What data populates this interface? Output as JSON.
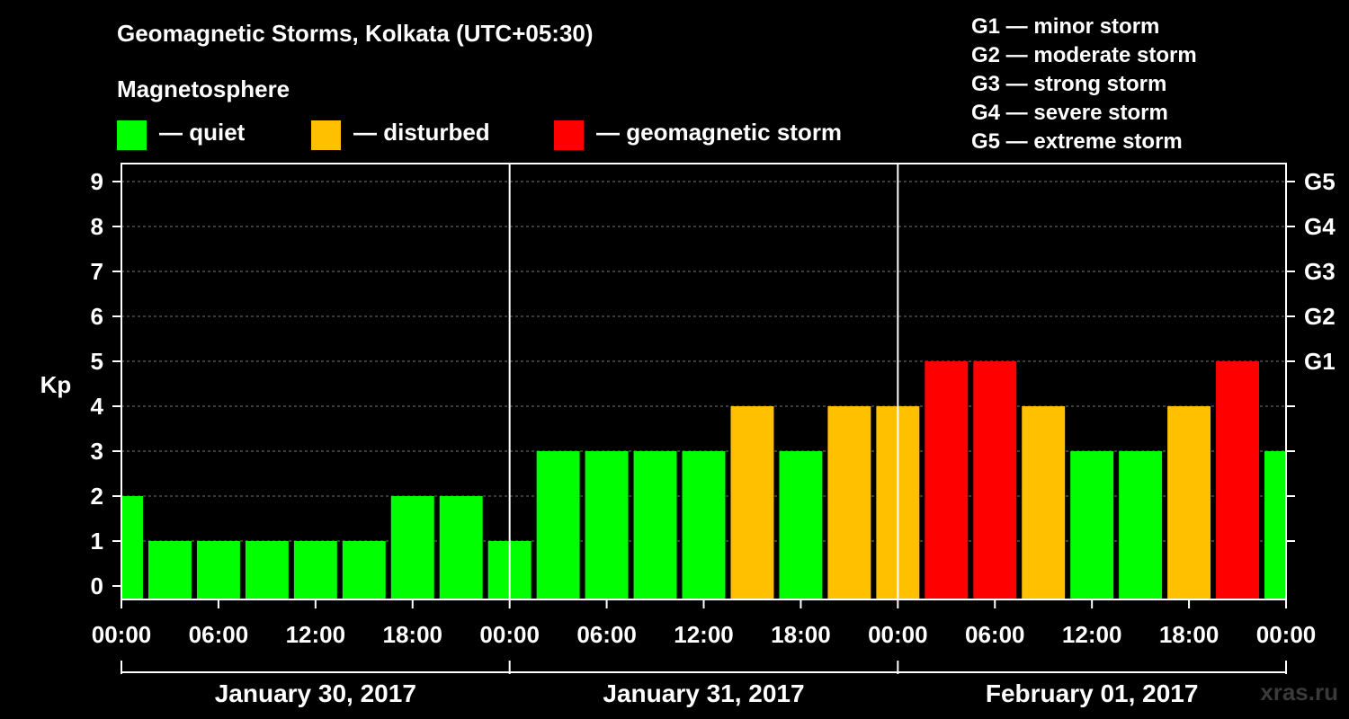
{
  "chart_data": {
    "type": "bar",
    "title": "Geomagnetic Storms, Kolkata (UTC+05:30)",
    "ylabel": "Kp",
    "ylim": [
      0,
      9
    ],
    "yticks": [
      "0",
      "1",
      "2",
      "3",
      "4",
      "5",
      "6",
      "7",
      "8",
      "9"
    ],
    "right_ticks": [
      {
        "kp": 5,
        "label": "G1"
      },
      {
        "kp": 6,
        "label": "G2"
      },
      {
        "kp": 7,
        "label": "G3"
      },
      {
        "kp": 8,
        "label": "G4"
      },
      {
        "kp": 9,
        "label": "G5"
      }
    ],
    "xticks": [
      "00:00",
      "06:00",
      "12:00",
      "18:00",
      "00:00",
      "06:00",
      "12:00",
      "18:00",
      "00:00",
      "06:00",
      "12:00",
      "18:00",
      "00:00"
    ],
    "days": [
      "January 30, 2017",
      "January 31, 2017",
      "February 01, 2017"
    ],
    "grid": "dashed horizontal",
    "values": [
      2,
      1,
      1,
      1,
      1,
      1,
      2,
      2,
      1,
      3,
      3,
      3,
      3,
      4,
      3,
      4,
      4,
      5,
      5,
      4,
      3,
      3,
      4,
      5,
      3
    ],
    "colors": {
      "quiet": "#00ff00",
      "disturbed": "#ffc000",
      "storm": "#ff0000"
    }
  },
  "legend": {
    "heading": "Magnetosphere",
    "items": [
      {
        "label": "— quiet",
        "color": "#00ff00"
      },
      {
        "label": "— disturbed",
        "color": "#ffc000"
      },
      {
        "label": "— geomagnetic storm",
        "color": "#ff0000"
      }
    ],
    "storm_scale": [
      "G1 — minor storm",
      "G2 — moderate storm",
      "G3 — strong storm",
      "G4 — severe storm",
      "G5 — extreme storm"
    ]
  },
  "watermark": "xras.ru"
}
